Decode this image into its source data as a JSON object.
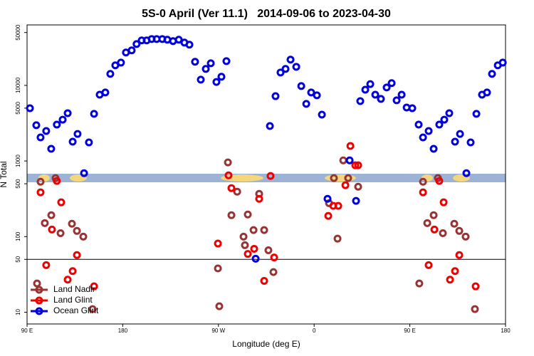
{
  "chart_data": {
    "type": "scatter",
    "title": "5S-0 April (Ver 11.1)   2014-09-06 to 2023-04-30",
    "xlabel": "Longitude (deg E)",
    "ylabel": "N Total",
    "xlim": [
      90,
      540
    ],
    "ylim": [
      7,
      63000
    ],
    "log_y": true,
    "xticks": [
      {
        "value": 90,
        "label": "90 E"
      },
      180,
      {
        "value": 270,
        "label": "90 W"
      },
      {
        "value": 360,
        "label": "0"
      },
      {
        "value": 450,
        "label": "90 E"
      },
      {
        "value": 540,
        "label": "180"
      }
    ],
    "yticks": [
      10,
      50,
      100,
      500,
      1000,
      5000,
      10000,
      50000
    ],
    "hline": 50,
    "legend": "lower left",
    "series": [
      {
        "name": "Land Nadir",
        "color": "#993333",
        "x": [
          99.4,
          102.7,
          106.7,
          112.8,
          116.8,
          121.5,
          132.2,
          136.9,
          142.9,
          151.6,
          269.5,
          270.8,
          278.9,
          282.2,
          287.6,
          293.6,
          294.9,
          297.6,
          303,
          308.3,
          313,
          317,
          321.7,
          374,
          378.6,
          382,
          387.4,
          392,
          401.4,
          458.9,
          462.4,
          466.4,
          472.4,
          476.4,
          481.1,
          491.8,
          496.5,
          502.5,
          511.2
        ],
        "values": [
          24,
          532,
          151,
          192,
          594,
          111,
          148,
          119,
          100,
          11,
          38,
          12,
          957,
          192,
          393,
          100,
          77,
          196,
          122,
          368,
          122,
          66,
          34,
          277,
          594,
          94,
          1020,
          594,
          457,
          24,
          532,
          151,
          192,
          594,
          111,
          148,
          119,
          100,
          11
        ]
      },
      {
        "name": "Land Glint",
        "color": "#ee0000",
        "x": [
          102.7,
          108,
          113.4,
          118,
          122.1,
          128.2,
          132.9,
          136.9,
          153,
          269.5,
          279.5,
          282.2,
          297.6,
          303.6,
          308.3,
          313,
          319,
          322.4,
          373.3,
          378,
          382.7,
          389.4,
          394.1,
          398.7,
          401.4,
          462.4,
          467.7,
          473.1,
          477.7,
          481.8,
          487.8,
          492.5,
          496.5,
          511.9
        ],
        "values": [
          385,
          42,
          124,
          545,
          284,
          27,
          35,
          57,
          22,
          81,
          647,
          438,
          59,
          69,
          316,
          26,
          634,
          53,
          188,
          255,
          255,
          478,
          1580,
          877,
          877,
          385,
          42,
          124,
          545,
          284,
          27,
          35,
          57,
          22
        ]
      },
      {
        "name": "Ocean Glint",
        "color": "#0000dd",
        "x": [
          92.7,
          98.7,
          102.7,
          108,
          112.7,
          118,
          123.5,
          128.2,
          132.9,
          137.5,
          143.6,
          148.2,
          153,
          158.3,
          163.6,
          168.3,
          173,
          178.3,
          183,
          188.4,
          193,
          197.8,
          202.5,
          207.2,
          211.9,
          217.2,
          221.9,
          227.3,
          232.7,
          238,
          242.7,
          248,
          253.4,
          258.1,
          262.8,
          268.1,
          272.8,
          277.5,
          305,
          318.4,
          323.7,
          328.4,
          333.1,
          337.8,
          343.2,
          347.9,
          352.6,
          357.2,
          362.6,
          367.3,
          372.6,
          393.4,
          399.4,
          403.4,
          408.1,
          412.8,
          417.5,
          422.8,
          428.2,
          432.9,
          437.6,
          442.3,
          447,
          452.3,
          458.3,
          462.4,
          467.7,
          472.4,
          477.7,
          482.4,
          487.1,
          492.5,
          497.2,
          503.2,
          507.2,
          512.6,
          517.9,
          522.6,
          527.3,
          532.7,
          537.4
        ],
        "values": [
          4990,
          2970,
          2050,
          2490,
          1450,
          3030,
          3520,
          4290,
          1800,
          2280,
          690,
          1760,
          4200,
          7530,
          8050,
          14200,
          18400,
          20000,
          27200,
          29000,
          35200,
          39300,
          39300,
          41000,
          41000,
          41000,
          40200,
          38500,
          40200,
          36800,
          34500,
          20500,
          11900,
          16500,
          19600,
          11100,
          13000,
          20900,
          51,
          2900,
          7200,
          14800,
          16500,
          21900,
          17600,
          9800,
          5690,
          8050,
          7380,
          4100,
          316,
          1020,
          297,
          6190,
          8770,
          10400,
          7530,
          6620,
          9380,
          10700,
          6340,
          7530,
          5100,
          4990,
          3030,
          2050,
          2490,
          1450,
          3030,
          3520,
          4290,
          1800,
          2280,
          690,
          1760,
          4200,
          7530,
          8050,
          14200,
          18400,
          20000
        ]
      }
    ]
  }
}
